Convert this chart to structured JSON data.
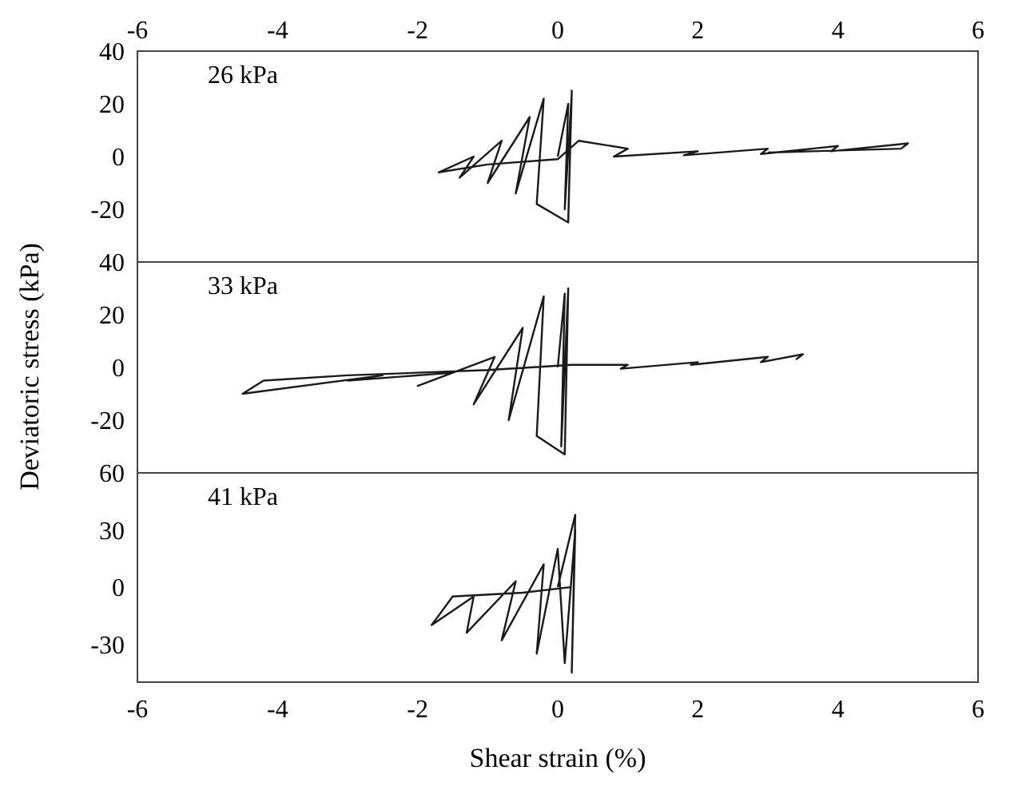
{
  "chart_data": [
    {
      "type": "line",
      "annotations": [
        "26 kPa"
      ],
      "xlim": [
        -6,
        6
      ],
      "xticks": [
        -6,
        -4,
        -2,
        0,
        2,
        4,
        6
      ],
      "ylim": [
        -40,
        40
      ],
      "yticks": [
        40,
        20,
        0,
        -20
      ],
      "series": [
        {
          "color": "#1a1a1a",
          "x": [
            0,
            0.15,
            0.1,
            0.2,
            0.15,
            0.2,
            0.15,
            -0.3,
            -0.2,
            -0.6,
            -0.4,
            -1,
            -0.8,
            -1.4,
            -1.2,
            -1.7,
            -1,
            0,
            0.3,
            1,
            0.8,
            2,
            1.8,
            3,
            2.9,
            4,
            3.9,
            5,
            4.9,
            3
          ],
          "values": [
            0,
            20,
            -20,
            24,
            -24,
            25,
            -25,
            -18,
            22,
            -14,
            15,
            -10,
            6,
            -8,
            0,
            -6,
            -3,
            -1,
            6,
            3,
            0,
            2,
            0.5,
            3,
            1,
            4,
            2,
            5,
            3,
            1.5
          ]
        }
      ]
    },
    {
      "type": "line",
      "annotations": [
        "33 kPa"
      ],
      "ylabel": "Deviatoric stress (kPa)",
      "xlim": [
        -6,
        6
      ],
      "ylim": [
        -40,
        40
      ],
      "yticks": [
        40,
        20,
        0,
        -20
      ],
      "tick_labels": "y",
      "series": [
        {
          "color": "#1a1a1a",
          "x": [
            0,
            0.1,
            0.05,
            0.15,
            0.1,
            -0.3,
            -0.2,
            -0.7,
            -0.5,
            -1.2,
            -0.9,
            -2,
            -1.5,
            -3,
            -2.5,
            -4.5,
            -4.2,
            -3,
            -1,
            0.2,
            1,
            0.9,
            2,
            1.9,
            3,
            2.9,
            3.5,
            3.4
          ],
          "values": [
            0,
            28,
            -30,
            30,
            -33,
            -26,
            27,
            -20,
            15,
            -14,
            4,
            -7,
            -2,
            -5,
            -3,
            -10,
            -5,
            -3,
            -1,
            1,
            1,
            -0.5,
            2,
            1,
            4,
            2,
            5,
            3
          ]
        }
      ]
    },
    {
      "type": "line",
      "annotations": [
        "41 kPa"
      ],
      "xlabel": "Shear strain (%)",
      "xlim": [
        -6,
        6
      ],
      "xticks": [
        -6,
        -4,
        -2,
        0,
        2,
        4,
        6
      ],
      "ylim": [
        -50,
        60
      ],
      "yticks": [
        60,
        30,
        0,
        -30
      ],
      "series": [
        {
          "color": "#1a1a1a",
          "x": [
            0,
            0.25,
            0.2,
            0.25,
            0.1,
            0,
            -0.3,
            -0.2,
            -0.8,
            -0.6,
            -1.3,
            -1.2,
            -1.8,
            -1.5,
            -0.5,
            0.2
          ],
          "values": [
            0,
            38,
            -45,
            30,
            -40,
            20,
            -35,
            12,
            -28,
            3,
            -24,
            -5,
            -20,
            -5,
            -3,
            0
          ]
        }
      ]
    }
  ]
}
